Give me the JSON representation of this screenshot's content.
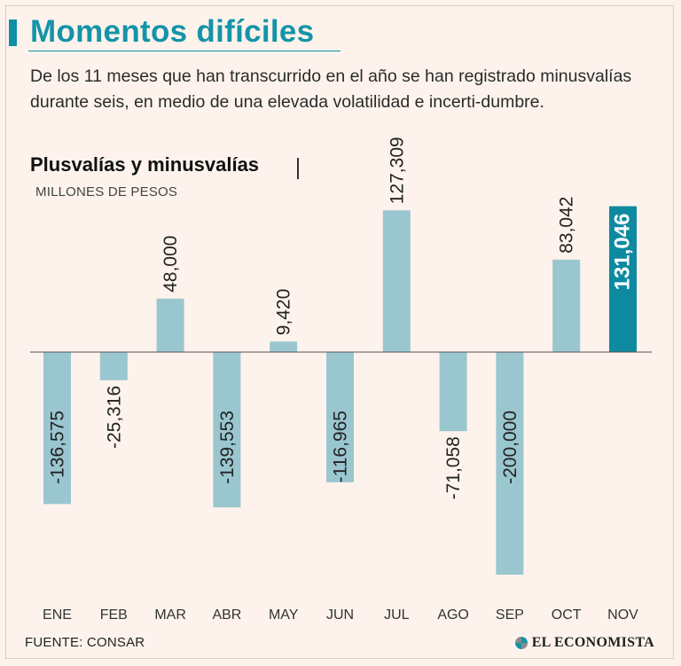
{
  "header": {
    "title": "Momentos difíciles",
    "subtitle": "De los 11 meses que han transcurrido en el año se han registrado minusvalías durante seis, en medio de una elevada volatilidad e incerti-dumbre."
  },
  "chart_data": {
    "type": "bar",
    "title": "Plusvalías y minusvalías",
    "ylabel": "MILLONES DE PESOS",
    "xlabel": "",
    "categories": [
      "ENE",
      "FEB",
      "MAR",
      "ABR",
      "MAY",
      "JUN",
      "JUL",
      "AGO",
      "SEP",
      "OCT",
      "NOV"
    ],
    "values": [
      -136575,
      -25316,
      48000,
      -139553,
      9420,
      -116965,
      127309,
      -71058,
      -200000,
      83042,
      131046
    ],
    "value_labels": [
      "-136,575",
      "-25,316",
      "48,000",
      "-139,553",
      "9,420",
      "-116,965",
      "127,309",
      "-71,058",
      "-200,000",
      "83,042",
      "131,046"
    ],
    "highlight_index": 10,
    "ylim": [
      -200000,
      131046
    ],
    "grid": false
  },
  "colors": {
    "bar": "#9ac6cf",
    "highlight": "#0e8aa0",
    "accent": "#1394a8",
    "background": "#fdf3ec"
  },
  "footer": {
    "source": "FUENTE: CONSAR",
    "logo_text": "EL ECONOMISTA",
    "logo_icon": "el-economista-logo-icon"
  }
}
